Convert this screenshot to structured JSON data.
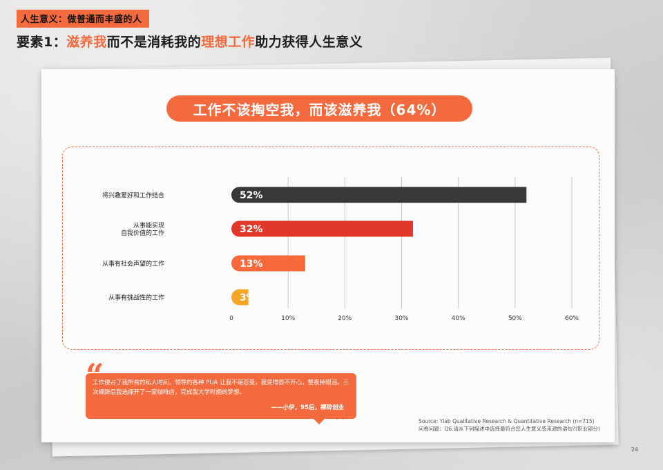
{
  "top_tag": "人生意义：做普通而丰盛的人",
  "heading": {
    "prefix": "要素1：",
    "hl1": "滋养我",
    "mid": "而不是消耗我的",
    "hl2": "理想工作",
    "suffix": "助力获得人生意义"
  },
  "banner": "工作不该掏空我，而该滋养我（64%）",
  "colors": {
    "accent": "#f26a3d",
    "bar_colors": [
      "#3a3737",
      "#e2382a",
      "#f7693b",
      "#f4a623"
    ]
  },
  "chart_data": {
    "type": "bar",
    "orientation": "horizontal",
    "categories": [
      [
        "将兴趣爱好和工作结合"
      ],
      [
        "从事能实现",
        "自我价值的工作"
      ],
      [
        "从事有社会声望的工作"
      ],
      [
        "从事有挑战性的工作"
      ]
    ],
    "values": [
      52,
      32,
      13,
      3
    ],
    "value_labels": [
      "52%",
      "32%",
      "13%",
      "3%"
    ],
    "xlim": [
      0,
      60
    ],
    "xticks": [
      0,
      10,
      20,
      30,
      40,
      50,
      60
    ],
    "xtick_labels": [
      "0",
      "10%",
      "20%",
      "30%",
      "40%",
      "50%",
      "60%"
    ],
    "grid": true
  },
  "quote": {
    "text": "工作侵占了我所有的私人时间，领导的各种 PUA 让我不堪忍受，我变得很不开心，整夜掉眼泪。三次裸辞后我选择开了一家咖啡店，完成我大学时期的梦想。",
    "author": "——小伊，95后，裸辞创业",
    "open_mark": "“",
    "close_mark": "”"
  },
  "source": {
    "line1": "Source: Ylab Qualitative Research & Quantitative Research (n=715)",
    "line2": "问卷问题：Q6.请从下列描述中选择最符合您人生意义感来源的语句?(职业部分)"
  },
  "page_number": "24"
}
